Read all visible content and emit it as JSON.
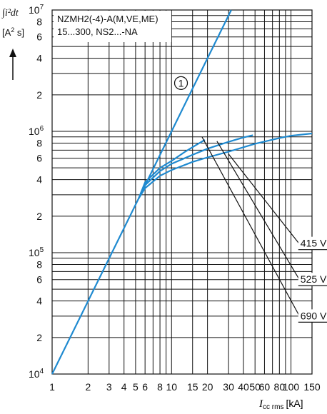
{
  "chart_data": {
    "type": "line",
    "x_scale": "log",
    "y_scale": "log",
    "xlim": [
      1,
      150
    ],
    "ylim": [
      10000,
      10000000
    ],
    "grid": true,
    "ylabel_integral": "∫i²dt",
    "ylabel_unit_open": "[A",
    "ylabel_unit_exp": "2",
    "ylabel_unit_close": " s]",
    "xlabel_symbol": "I",
    "xlabel_sub": "cc rms",
    "xlabel_unit": "[kA]",
    "device_label_line1": "NZMH2(-4)-A(M,VE,ME)",
    "device_label_line2": "15...300, NS2...-NA",
    "x_ticks": [
      {
        "value": 1,
        "label": "1"
      },
      {
        "value": 2,
        "label": "2"
      },
      {
        "value": 3,
        "label": "3"
      },
      {
        "value": 4,
        "label": "4"
      },
      {
        "value": 5,
        "label": "5"
      },
      {
        "value": 6,
        "label": "6"
      },
      {
        "value": 8,
        "label": "8"
      },
      {
        "value": 10,
        "label": "10"
      },
      {
        "value": 15,
        "label": "15"
      },
      {
        "value": 20,
        "label": "20"
      },
      {
        "value": 30,
        "label": "30"
      },
      {
        "value": 40,
        "label": "40"
      },
      {
        "value": 50,
        "label": "50"
      },
      {
        "value": 60,
        "label": "60"
      },
      {
        "value": 80,
        "label": "80"
      },
      {
        "value": 100,
        "label": "100"
      },
      {
        "value": 150,
        "label": "150"
      }
    ],
    "x_gridlines": [
      1,
      2,
      3,
      4,
      5,
      6,
      7,
      8,
      9,
      10,
      15,
      20,
      30,
      40,
      50,
      60,
      70,
      80,
      90,
      100,
      150
    ],
    "y_gridlines": [
      10000,
      20000,
      30000,
      40000,
      50000,
      60000,
      70000,
      80000,
      90000,
      100000,
      200000,
      300000,
      400000,
      500000,
      600000,
      700000,
      800000,
      900000,
      1000000,
      2000000,
      3000000,
      4000000,
      5000000,
      6000000,
      7000000,
      8000000,
      9000000,
      10000000
    ],
    "y_ticks": [
      {
        "value": 10000,
        "base": "10",
        "exp": "4"
      },
      {
        "value": 20000,
        "label": "2"
      },
      {
        "value": 40000,
        "label": "4"
      },
      {
        "value": 60000,
        "label": "6"
      },
      {
        "value": 80000,
        "label": "8"
      },
      {
        "value": 100000,
        "base": "10",
        "exp": "5"
      },
      {
        "value": 200000,
        "label": "2"
      },
      {
        "value": 400000,
        "label": "4"
      },
      {
        "value": 600000,
        "label": "6"
      },
      {
        "value": 800000,
        "label": "8"
      },
      {
        "value": 1000000,
        "base": "10",
        "exp": "6"
      },
      {
        "value": 2000000,
        "label": "2"
      },
      {
        "value": 4000000,
        "label": "4"
      },
      {
        "value": 6000000,
        "label": "6"
      },
      {
        "value": 8000000,
        "label": "8"
      },
      {
        "value": 10000000,
        "base": "10",
        "exp": "7"
      }
    ],
    "series": [
      {
        "name": "1",
        "kind": "reference",
        "points": [
          [
            1,
            10000
          ],
          [
            5.3,
            280000
          ],
          [
            10,
            1000000
          ],
          [
            20,
            4000000
          ],
          [
            31.6,
            10000000
          ]
        ]
      },
      {
        "name": "415 V",
        "points": [
          [
            5.3,
            280000
          ],
          [
            6,
            340000
          ],
          [
            8,
            430000
          ],
          [
            10,
            480000
          ],
          [
            15,
            560000
          ],
          [
            20,
            610000
          ],
          [
            30,
            680000
          ],
          [
            50,
            790000
          ],
          [
            80,
            880000
          ],
          [
            100,
            920000
          ],
          [
            150,
            960000
          ]
        ]
      },
      {
        "name": "525 V",
        "points": [
          [
            5.3,
            280000
          ],
          [
            6,
            360000
          ],
          [
            8,
            470000
          ],
          [
            10,
            540000
          ],
          [
            15,
            640000
          ],
          [
            20,
            720000
          ],
          [
            30,
            820000
          ],
          [
            40,
            890000
          ],
          [
            48,
            930000
          ]
        ]
      },
      {
        "name": "690 V",
        "points": [
          [
            5.3,
            280000
          ],
          [
            6,
            380000
          ],
          [
            8,
            500000
          ],
          [
            10,
            570000
          ],
          [
            13,
            680000
          ],
          [
            16,
            770000
          ],
          [
            19,
            850000
          ]
        ]
      }
    ],
    "annotations": [
      {
        "text": "1",
        "kind": "circled",
        "x": 12,
        "y": 2500000
      },
      {
        "text": "415 V",
        "from": [
          30,
          650000
        ],
        "to": [
          120,
          115000
        ]
      },
      {
        "text": "525 V",
        "from": [
          24,
          830000
        ],
        "to": [
          120,
          58000
        ]
      },
      {
        "text": "690 V",
        "from": [
          18,
          900000
        ],
        "to": [
          120,
          29000
        ]
      }
    ],
    "colors": {
      "curves": "#1f8ad0",
      "grid": "#111111",
      "text": "#111111",
      "background": "#ffffff"
    }
  }
}
